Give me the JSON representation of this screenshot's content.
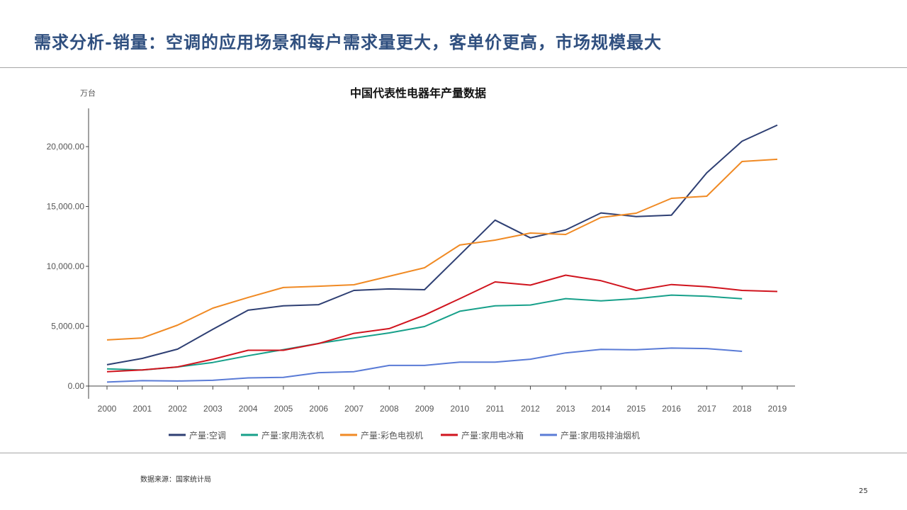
{
  "slide": {
    "title": "需求分析-销量：空调的应用场景和每户需求量更大，客单价更高，市场规模最大",
    "source": "数据来源：国家统计局",
    "page_number": "25"
  },
  "chart_data": {
    "type": "line",
    "title": "中国代表性电器年产量数据",
    "ylabel": "万台",
    "xlabel": "",
    "ylim": [
      0,
      22500
    ],
    "yticks": [
      0,
      5000,
      10000,
      15000,
      20000
    ],
    "ytick_labels": [
      "0.00",
      "5,000.00",
      "10,000.00",
      "15,000.00",
      "20,000.00"
    ],
    "grid": false,
    "legend_position": "bottom-center",
    "x": [
      "2000",
      "2001",
      "2002",
      "2003",
      "2004",
      "2005",
      "2006",
      "2007",
      "2008",
      "2009",
      "2010",
      "2011",
      "2012",
      "2013",
      "2014",
      "2015",
      "2016",
      "2017",
      "2018",
      "2019"
    ],
    "series": [
      {
        "name": "产量:空调",
        "color": "#2e3f73",
        "values": [
          1780,
          2310,
          3080,
          4740,
          6340,
          6700,
          6800,
          7990,
          8110,
          8050,
          10950,
          13860,
          12380,
          13040,
          14460,
          14160,
          14280,
          17810,
          20450,
          21800
        ]
      },
      {
        "name": "产量:家用洗衣机",
        "color": "#17a08a",
        "values": [
          1440,
          1340,
          1590,
          1970,
          2530,
          3040,
          3560,
          4010,
          4440,
          4970,
          6250,
          6700,
          6770,
          7300,
          7120,
          7300,
          7600,
          7500,
          7290,
          null
        ]
      },
      {
        "name": "产量:彩色电视机",
        "color": "#f08a24",
        "values": [
          3850,
          4020,
          5090,
          6510,
          7400,
          8230,
          8340,
          8460,
          9170,
          9880,
          11780,
          12190,
          12780,
          12660,
          14080,
          14440,
          15680,
          15860,
          18760,
          18940
        ]
      },
      {
        "name": "产量:家用电冰箱",
        "color": "#d0141e",
        "values": [
          1200,
          1350,
          1600,
          2240,
          2990,
          2990,
          3550,
          4400,
          4800,
          5930,
          7300,
          8700,
          8430,
          9260,
          8800,
          7990,
          8480,
          8300,
          7990,
          7900
        ]
      },
      {
        "name": "产量:家用吸排油烟机",
        "color": "#5a7bd6",
        "values": [
          330,
          450,
          420,
          480,
          680,
          730,
          1120,
          1200,
          1720,
          1720,
          2000,
          2000,
          2240,
          2770,
          3060,
          3030,
          3170,
          3130,
          2900,
          null
        ]
      }
    ]
  }
}
